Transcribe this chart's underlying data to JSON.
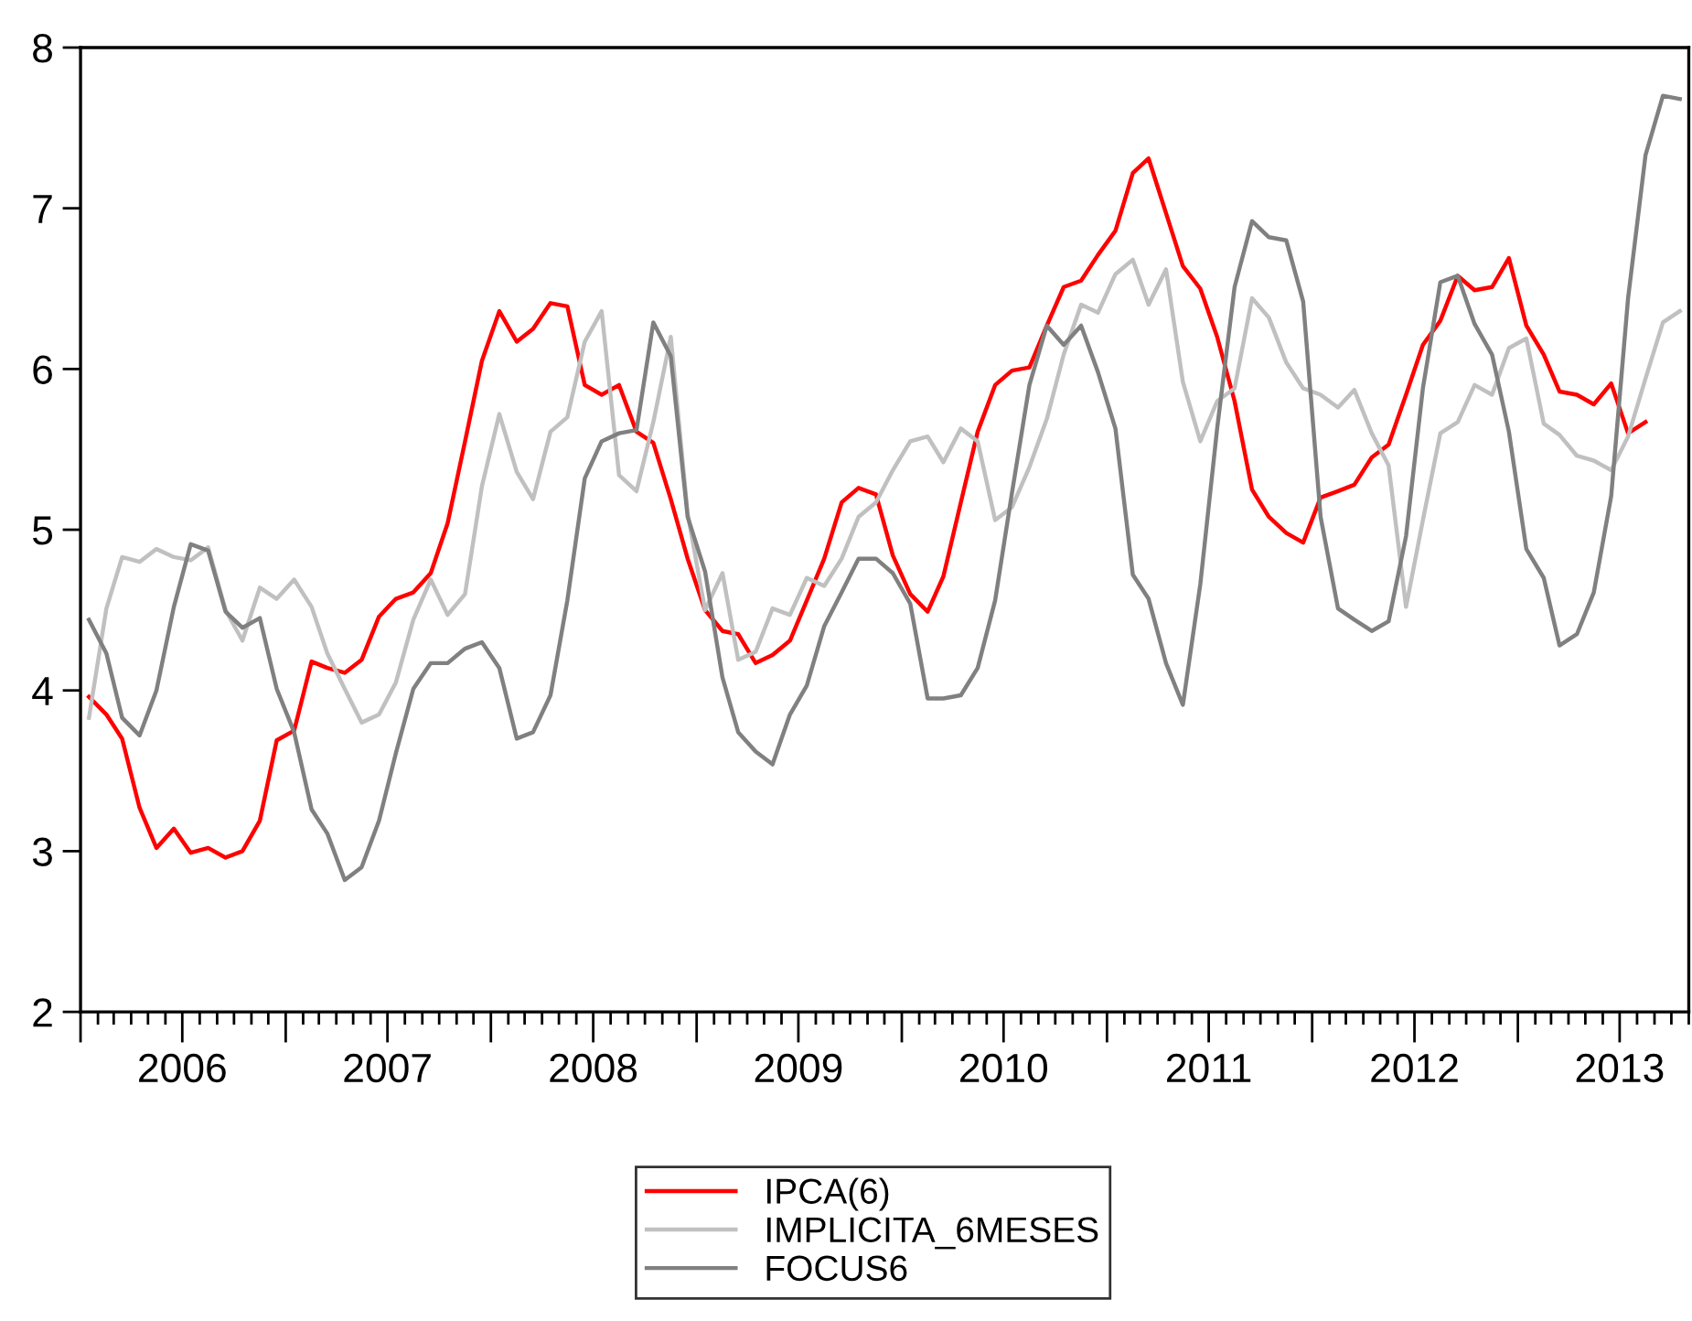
{
  "chart_data": {
    "type": "line",
    "x": [
      "2006-01-16",
      "2006-02-16",
      "2006-03-16",
      "2006-04-16",
      "2006-05-16",
      "2006-06-16",
      "2006-07-16",
      "2006-08-16",
      "2006-09-16",
      "2006-10-16",
      "2006-11-16",
      "2006-12-16",
      "2007-01-16",
      "2007-02-16",
      "2007-03-16",
      "2007-04-16",
      "2007-05-16",
      "2007-06-16",
      "2007-07-16",
      "2007-08-16",
      "2007-09-16",
      "2007-10-16",
      "2007-11-16",
      "2007-12-16",
      "2008-01-16",
      "2008-02-16",
      "2008-03-16",
      "2008-04-16",
      "2008-05-16",
      "2008-06-16",
      "2008-07-16",
      "2008-08-16",
      "2008-09-16",
      "2008-10-16",
      "2008-11-16",
      "2008-12-16",
      "2009-01-16",
      "2009-02-16",
      "2009-03-16",
      "2009-04-16",
      "2009-05-16",
      "2009-06-16",
      "2009-07-16",
      "2009-08-16",
      "2009-09-16",
      "2009-10-16",
      "2009-11-16",
      "2009-12-16",
      "2010-01-16",
      "2010-02-16",
      "2010-03-16",
      "2010-04-16",
      "2010-05-16",
      "2010-06-16",
      "2010-07-16",
      "2010-08-16",
      "2010-09-16",
      "2010-10-16",
      "2010-11-16",
      "2010-12-16",
      "2011-01-16",
      "2011-02-16",
      "2011-03-16",
      "2011-04-16",
      "2011-05-16",
      "2011-06-16",
      "2011-07-16",
      "2011-08-16",
      "2011-09-16",
      "2011-10-16",
      "2011-11-16",
      "2011-12-16",
      "2012-01-16",
      "2012-02-16",
      "2012-03-16",
      "2012-04-16",
      "2012-05-16",
      "2012-06-16",
      "2012-07-16",
      "2012-08-16",
      "2012-09-16",
      "2012-10-16",
      "2012-11-16",
      "2012-12-16",
      "2013-01-16",
      "2013-02-16",
      "2013-03-16",
      "2013-04-16",
      "2013-05-16",
      "2013-06-16",
      "2013-07-16",
      "2013-08-16",
      "2013-09-16",
      "2013-10-16"
    ],
    "series": [
      {
        "name": "IPCA(6)",
        "color": "#ff0000",
        "values": [
          3.96,
          3.85,
          3.7,
          3.27,
          3.02,
          3.14,
          2.99,
          3.02,
          2.96,
          3.0,
          3.19,
          3.69,
          3.75,
          4.18,
          4.14,
          4.11,
          4.19,
          4.46,
          4.57,
          4.61,
          4.73,
          5.04,
          5.55,
          6.05,
          6.36,
          6.17,
          6.25,
          6.41,
          6.39,
          5.9,
          5.84,
          5.9,
          5.61,
          5.54,
          5.19,
          4.82,
          4.5,
          4.37,
          4.35,
          4.17,
          4.22,
          4.31,
          4.56,
          4.82,
          5.17,
          5.26,
          5.22,
          4.84,
          4.6,
          4.49,
          4.71,
          5.17,
          5.61,
          5.9,
          5.99,
          6.01,
          6.27,
          6.51,
          6.55,
          6.71,
          6.86,
          7.22,
          7.31,
          6.97,
          6.64,
          6.5,
          6.2,
          5.8,
          5.25,
          5.08,
          4.98,
          4.92,
          5.2,
          5.24,
          5.28,
          5.45,
          5.53,
          5.84,
          6.15,
          6.3,
          6.58,
          6.49,
          6.51,
          6.69,
          6.27,
          6.09,
          5.86,
          5.84,
          5.78,
          5.91,
          5.6,
          5.67,
          null,
          null
        ]
      },
      {
        "name": "IMPLICITA_6MESES",
        "color": "#c0c0c0",
        "values": [
          3.83,
          4.51,
          4.83,
          4.8,
          4.88,
          4.83,
          4.81,
          4.89,
          4.5,
          4.31,
          4.64,
          4.57,
          4.69,
          4.52,
          4.23,
          4.01,
          3.8,
          3.85,
          4.05,
          4.44,
          4.69,
          4.47,
          4.6,
          5.27,
          5.72,
          5.36,
          5.19,
          5.61,
          5.7,
          6.17,
          6.36,
          5.34,
          5.24,
          5.67,
          6.2,
          5.1,
          4.5,
          4.73,
          4.19,
          4.24,
          4.51,
          4.47,
          4.7,
          4.65,
          4.82,
          5.08,
          5.17,
          5.37,
          5.55,
          5.58,
          5.42,
          5.63,
          5.55,
          5.06,
          5.14,
          5.39,
          5.69,
          6.09,
          6.4,
          6.35,
          6.59,
          6.68,
          6.4,
          6.62,
          5.92,
          5.55,
          5.8,
          5.88,
          6.44,
          6.32,
          6.04,
          5.88,
          5.84,
          5.76,
          5.87,
          5.6,
          5.4,
          4.52,
          5.06,
          5.6,
          5.67,
          5.9,
          5.84,
          6.13,
          6.19,
          5.66,
          5.59,
          5.46,
          5.43,
          5.37,
          5.58,
          5.94,
          6.29,
          6.36
        ]
      },
      {
        "name": "FOCUS6",
        "color": "#808080",
        "values": [
          4.44,
          4.23,
          3.83,
          3.72,
          4.0,
          4.52,
          4.91,
          4.87,
          4.49,
          4.39,
          4.45,
          4.01,
          3.74,
          3.26,
          3.11,
          2.82,
          2.9,
          3.19,
          3.61,
          4.01,
          4.17,
          4.17,
          4.26,
          4.3,
          4.14,
          3.7,
          3.74,
          3.97,
          4.56,
          5.32,
          5.55,
          5.6,
          5.62,
          6.29,
          6.08,
          5.08,
          4.74,
          4.08,
          3.74,
          3.62,
          3.54,
          3.85,
          4.03,
          4.4,
          4.61,
          4.82,
          4.82,
          4.73,
          4.54,
          3.95,
          3.95,
          3.97,
          4.14,
          4.56,
          5.23,
          5.9,
          6.27,
          6.15,
          6.27,
          5.98,
          5.63,
          4.72,
          4.57,
          4.17,
          3.91,
          4.66,
          5.63,
          6.51,
          6.92,
          6.82,
          6.8,
          6.42,
          5.08,
          4.51,
          4.44,
          4.37,
          4.43,
          4.96,
          5.88,
          6.54,
          6.58,
          6.28,
          6.09,
          5.61,
          4.88,
          4.7,
          4.28,
          4.35,
          4.61,
          5.21,
          6.44,
          7.33,
          7.7,
          7.68
        ]
      }
    ],
    "xlim": [
      "2006-01-01",
      "2013-11-01"
    ],
    "xticks": [
      {
        "value": "2006-07-01",
        "label": "2006"
      },
      {
        "value": "2007-07-01",
        "label": "2007"
      },
      {
        "value": "2008-07-01",
        "label": "2008"
      },
      {
        "value": "2009-07-01",
        "label": "2009"
      },
      {
        "value": "2010-07-01",
        "label": "2010"
      },
      {
        "value": "2011-07-01",
        "label": "2011"
      },
      {
        "value": "2012-07-01",
        "label": "2012"
      },
      {
        "value": "2013-07-01",
        "label": "2013"
      }
    ],
    "ylim": [
      2,
      8
    ],
    "yticks": [
      2,
      3,
      4,
      5,
      6,
      7,
      8
    ],
    "grid": false,
    "legend": "bottom",
    "marker": "none",
    "line_style": "solid"
  }
}
